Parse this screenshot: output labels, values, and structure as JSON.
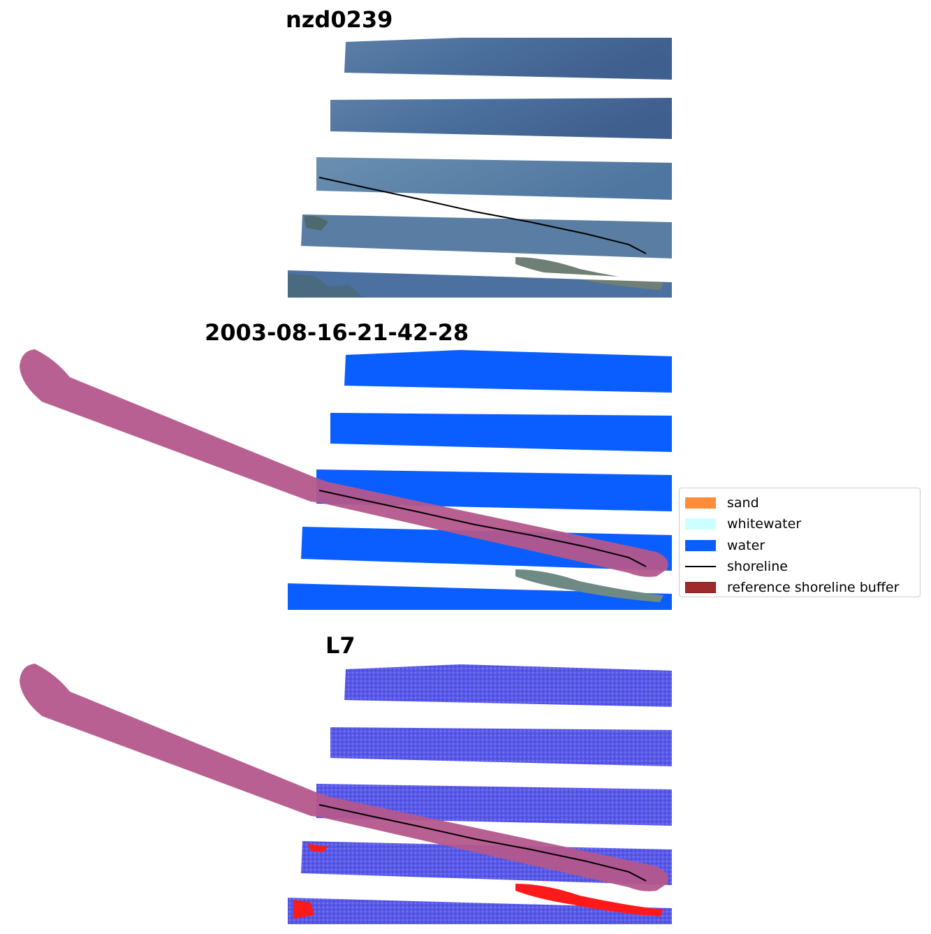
{
  "panels": [
    {
      "title": "nzd0239"
    },
    {
      "title": "2003-08-16-21-42-28"
    },
    {
      "title": "L7"
    }
  ],
  "legend": {
    "items": [
      {
        "label": "sand",
        "color": "#ff8c3a",
        "kind": "patch"
      },
      {
        "label": "whitewater",
        "color": "#ccffff",
        "kind": "patch"
      },
      {
        "label": "water",
        "color": "#0a5eff",
        "kind": "patch"
      },
      {
        "label": "shoreline",
        "color": "#000000",
        "kind": "line"
      },
      {
        "label": "reference shoreline buffer",
        "color": "#9e2a2b",
        "kind": "patch"
      }
    ]
  },
  "colors": {
    "rgb_water": "#4a6f9c",
    "rgb_land": "#6f8a88",
    "classified_water": "#0a5eff",
    "index_water": "#5a5ae8",
    "index_land": "#ff1a1a",
    "buffer": "#b4578c",
    "shoreline": "#000000"
  }
}
